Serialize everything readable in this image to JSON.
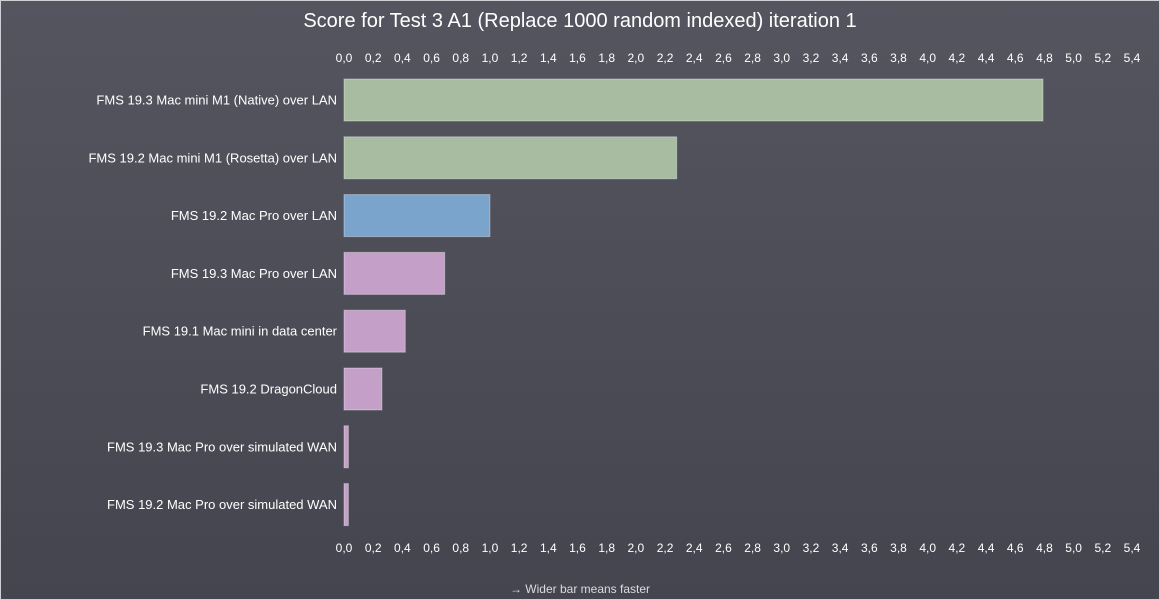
{
  "chart_data": {
    "type": "bar",
    "orientation": "horizontal",
    "title": "Score for Test 3 A1 (Replace 1000 random indexed) iteration 1",
    "footnote": "→ Wider bar means faster",
    "xlim": [
      0,
      5.4
    ],
    "x_ticks": [
      "0,0",
      "0,2",
      "0,4",
      "0,6",
      "0,8",
      "1,0",
      "1,2",
      "1,4",
      "1,6",
      "1,8",
      "2,0",
      "2,2",
      "2,4",
      "2,6",
      "2,8",
      "3,0",
      "3,2",
      "3,4",
      "3,6",
      "3,8",
      "4,0",
      "4,2",
      "4,4",
      "4,6",
      "4,8",
      "5,0",
      "5,2",
      "5,4"
    ],
    "tick_axes": "top and bottom",
    "grid": false,
    "legend": "none",
    "categories": [
      "FMS 19.3 Mac mini M1 (Native) over LAN",
      "FMS 19.2 Mac mini M1 (Rosetta) over LAN",
      "FMS 19.2 Mac Pro over LAN",
      "FMS 19.3 Mac Pro over LAN",
      "FMS 19.1 Mac mini in data center",
      "FMS 19.2 DragonCloud",
      "FMS 19.3 Mac Pro over simulated WAN",
      "FMS 19.2 Mac Pro over simulated WAN"
    ],
    "values": [
      4.79,
      2.28,
      1.0,
      0.69,
      0.42,
      0.26,
      0.03,
      0.03
    ],
    "bar_colors": [
      "#a8bca2",
      "#a8bca2",
      "#7ba4cc",
      "#c4a0c8",
      "#c4a0c8",
      "#c4a0c8",
      "#c4a0c8",
      "#c4a0c8"
    ]
  }
}
